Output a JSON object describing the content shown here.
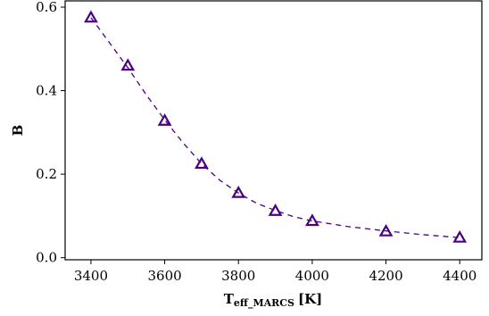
{
  "chart_data": {
    "type": "scatter",
    "xlabel": "T",
    "xlabel_sub": "eff_MARCS",
    "xlabel_unit": "[K]",
    "ylabel": "B",
    "xlim": [
      3330,
      4460
    ],
    "ylim": [
      -0.005,
      0.615
    ],
    "x_ticks": [
      3400,
      3600,
      3800,
      4000,
      4200,
      4400
    ],
    "x_tick_labels": [
      "3400",
      "3600",
      "3800",
      "4000",
      "4200",
      "4400"
    ],
    "y_ticks": [
      0.0,
      0.2,
      0.4,
      0.6
    ],
    "y_tick_labels": [
      "0.0",
      "0.2",
      "0.4",
      "0.6"
    ],
    "grid": false,
    "marker": "triangle-open",
    "color": "#4b0082",
    "series": [
      {
        "style": "markers",
        "x": [
          3400,
          3500,
          3600,
          3700,
          3800,
          3900,
          4000,
          4200,
          4400
        ],
        "y": [
          0.575,
          0.46,
          0.328,
          0.225,
          0.155,
          0.112,
          0.088,
          0.063,
          0.048
        ]
      },
      {
        "style": "dashed-line",
        "x": [
          3400,
          3450,
          3500,
          3550,
          3600,
          3650,
          3700,
          3750,
          3800,
          3850,
          3900,
          3950,
          4000,
          4100,
          4200,
          4300,
          4400
        ],
        "y": [
          0.575,
          0.515,
          0.455,
          0.39,
          0.33,
          0.275,
          0.225,
          0.185,
          0.155,
          0.13,
          0.113,
          0.098,
          0.088,
          0.074,
          0.064,
          0.055,
          0.048
        ]
      }
    ]
  }
}
